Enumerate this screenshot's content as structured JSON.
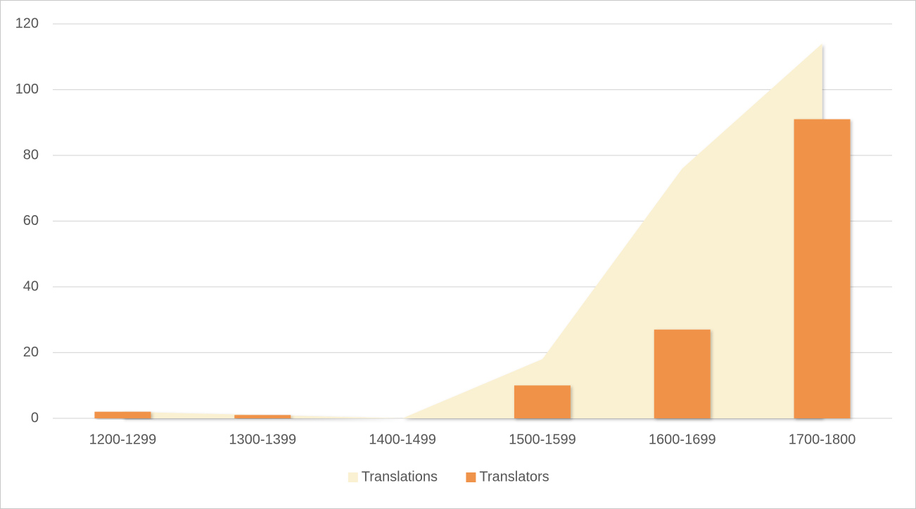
{
  "chart_data": {
    "type": "combo",
    "categories": [
      "1200-1299",
      "1300-1399",
      "1400-1499",
      "1500-1599",
      "1600-1699",
      "1700-1800"
    ],
    "series": [
      {
        "name": "Translations",
        "type": "area",
        "color": "#faf0d2",
        "values": [
          2,
          1,
          0,
          18,
          76,
          114
        ]
      },
      {
        "name": "Translators",
        "type": "bar",
        "color": "#f0934a",
        "values": [
          2,
          1,
          0,
          10,
          27,
          91
        ]
      }
    ],
    "ylim": [
      0,
      120
    ],
    "yticks": [
      0,
      20,
      40,
      60,
      80,
      100,
      120
    ],
    "grid": true,
    "legend": "bottom"
  }
}
